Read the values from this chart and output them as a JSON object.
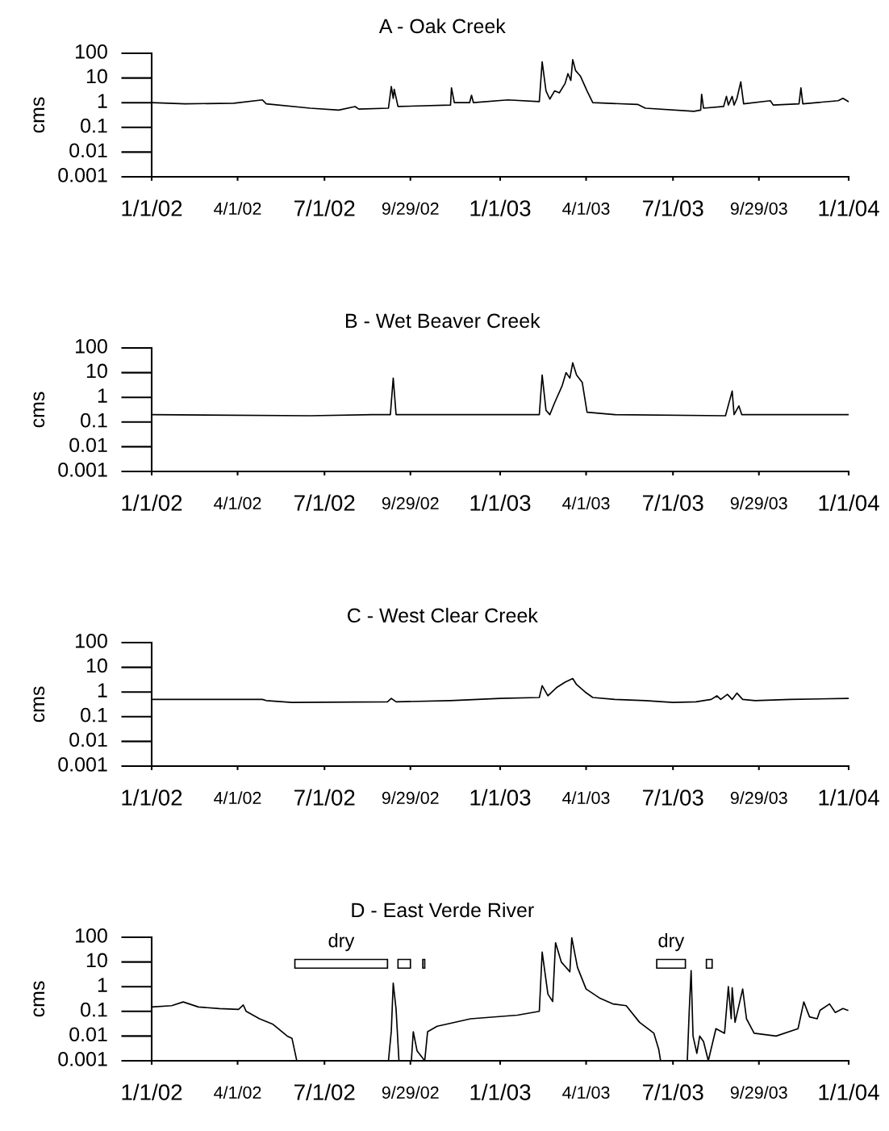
{
  "chart_data": [
    {
      "type": "line",
      "title": "A - Oak Creek",
      "ylabel": "cms",
      "log": "y",
      "xlim": [
        "2002-01-01",
        "2004-01-01"
      ],
      "ylim": [
        0.001,
        100
      ],
      "xticks": [
        {
          "value": "2002-01-01",
          "label": "1/1/02"
        },
        {
          "value": "2002-04-01",
          "label": "4/1/02"
        },
        {
          "value": "2002-07-01",
          "label": "7/1/02"
        },
        {
          "value": "2002-09-29",
          "label": "9/29/02"
        },
        {
          "value": "2003-01-01",
          "label": "1/1/03"
        },
        {
          "value": "2003-04-01",
          "label": "4/1/03"
        },
        {
          "value": "2003-07-01",
          "label": "7/1/03"
        },
        {
          "value": "2003-09-29",
          "label": "9/29/03"
        },
        {
          "value": "2004-01-01",
          "label": "1/1/04"
        }
      ],
      "yticks": [
        0.001,
        0.01,
        0.1,
        1,
        10,
        100
      ],
      "series": [
        {
          "color": "#000000",
          "x": [
            "2002-01-01",
            "2002-02-05",
            "2002-03-28",
            "2002-04-27",
            "2002-05-01",
            "2002-06-16",
            "2002-07-16",
            "2002-08-02",
            "2002-08-06",
            "2002-09-06",
            "2002-09-09",
            "2002-09-11",
            "2002-09-12",
            "2002-09-16",
            "2002-11-10",
            "2002-11-11",
            "2002-11-14",
            "2002-11-30",
            "2002-12-02",
            "2002-12-04",
            "2003-01-09",
            "2003-02-11",
            "2003-02-14",
            "2003-02-18",
            "2003-02-22",
            "2003-02-27",
            "2003-03-04",
            "2003-03-10",
            "2003-03-13",
            "2003-03-16",
            "2003-03-18",
            "2003-03-21",
            "2003-03-26",
            "2003-04-02",
            "2003-04-08",
            "2003-05-25",
            "2003-06-02",
            "2003-07-23",
            "2003-07-30",
            "2003-07-31",
            "2003-08-02",
            "2003-08-23",
            "2003-08-26",
            "2003-08-28",
            "2003-09-01",
            "2003-09-03",
            "2003-09-06",
            "2003-09-10",
            "2003-09-13",
            "2003-10-11",
            "2003-10-14",
            "2003-11-10",
            "2003-11-12",
            "2003-11-14",
            "2003-12-21",
            "2003-12-26",
            "2004-01-01"
          ],
          "values": [
            1.0,
            0.9,
            0.95,
            1.3,
            0.9,
            0.6,
            0.5,
            0.7,
            0.55,
            0.6,
            4.5,
            1.5,
            3.5,
            0.7,
            0.8,
            4,
            1.0,
            1.0,
            2,
            1.0,
            1.3,
            1.1,
            45,
            3,
            1.4,
            3,
            2.5,
            6,
            15,
            8,
            55,
            20,
            12,
            3,
            1.0,
            0.85,
            0.6,
            0.45,
            0.5,
            2.2,
            0.6,
            0.7,
            1.8,
            0.8,
            1.8,
            0.8,
            1.5,
            7,
            0.9,
            1.2,
            0.8,
            0.9,
            4,
            0.9,
            1.2,
            1.5,
            1.1
          ]
        }
      ]
    },
    {
      "type": "line",
      "title": "B - Wet Beaver Creek",
      "ylabel": "cms",
      "log": "y",
      "xlim": [
        "2002-01-01",
        "2004-01-01"
      ],
      "ylim": [
        0.001,
        100
      ],
      "xticks": [
        {
          "value": "2002-01-01",
          "label": "1/1/02"
        },
        {
          "value": "2002-04-01",
          "label": "4/1/02"
        },
        {
          "value": "2002-07-01",
          "label": "7/1/02"
        },
        {
          "value": "2002-09-29",
          "label": "9/29/02"
        },
        {
          "value": "2003-01-01",
          "label": "1/1/03"
        },
        {
          "value": "2003-04-01",
          "label": "4/1/03"
        },
        {
          "value": "2003-07-01",
          "label": "7/1/03"
        },
        {
          "value": "2003-09-29",
          "label": "9/29/03"
        },
        {
          "value": "2004-01-01",
          "label": "1/1/04"
        }
      ],
      "yticks": [
        0.001,
        0.01,
        0.1,
        1,
        10,
        100
      ],
      "series": [
        {
          "color": "#000000",
          "x": [
            "2002-01-01",
            "2002-06-16",
            "2002-08-20",
            "2002-09-08",
            "2002-09-11",
            "2002-09-14",
            "2002-12-31",
            "2003-02-11",
            "2003-02-14",
            "2003-02-18",
            "2003-02-22",
            "2003-02-27",
            "2003-03-07",
            "2003-03-11",
            "2003-03-15",
            "2003-03-18",
            "2003-03-22",
            "2003-03-28",
            "2003-04-02",
            "2003-05-01",
            "2003-08-25",
            "2003-09-01",
            "2003-09-03",
            "2003-09-08",
            "2003-09-11",
            "2004-01-01"
          ],
          "values": [
            0.2,
            0.18,
            0.2,
            0.2,
            6,
            0.2,
            0.2,
            0.2,
            8,
            0.3,
            0.2,
            0.6,
            3,
            10,
            6,
            25,
            8,
            4,
            0.25,
            0.2,
            0.18,
            1.8,
            0.2,
            0.45,
            0.2,
            0.2
          ]
        }
      ]
    },
    {
      "type": "line",
      "title": "C - West Clear Creek",
      "ylabel": "cms",
      "log": "y",
      "xlim": [
        "2002-01-01",
        "2004-01-01"
      ],
      "ylim": [
        0.001,
        100
      ],
      "xticks": [
        {
          "value": "2002-01-01",
          "label": "1/1/02"
        },
        {
          "value": "2002-04-01",
          "label": "4/1/02"
        },
        {
          "value": "2002-07-01",
          "label": "7/1/02"
        },
        {
          "value": "2002-09-29",
          "label": "9/29/02"
        },
        {
          "value": "2003-01-01",
          "label": "1/1/03"
        },
        {
          "value": "2003-04-01",
          "label": "4/1/03"
        },
        {
          "value": "2003-07-01",
          "label": "7/1/03"
        },
        {
          "value": "2003-09-29",
          "label": "9/29/03"
        },
        {
          "value": "2004-01-01",
          "label": "1/1/04"
        }
      ],
      "yticks": [
        0.001,
        0.01,
        0.1,
        1,
        10,
        100
      ],
      "series": [
        {
          "color": "#000000",
          "x": [
            "2002-01-01",
            "2002-04-27",
            "2002-05-01",
            "2002-05-28",
            "2002-09-05",
            "2002-09-09",
            "2002-09-14",
            "2002-11-10",
            "2003-01-01",
            "2003-02-11",
            "2003-02-14",
            "2003-02-20",
            "2003-03-01",
            "2003-03-10",
            "2003-03-18",
            "2003-03-22",
            "2003-03-31",
            "2003-04-08",
            "2003-05-01",
            "2003-06-02",
            "2003-07-01",
            "2003-07-25",
            "2003-08-10",
            "2003-08-16",
            "2003-08-20",
            "2003-08-27",
            "2003-09-01",
            "2003-09-06",
            "2003-09-12",
            "2003-09-25",
            "2003-11-01",
            "2004-01-01"
          ],
          "values": [
            0.5,
            0.5,
            0.45,
            0.38,
            0.4,
            0.55,
            0.4,
            0.45,
            0.55,
            0.6,
            1.8,
            0.7,
            1.5,
            2.5,
            3.5,
            2,
            1.0,
            0.6,
            0.5,
            0.45,
            0.38,
            0.4,
            0.5,
            0.7,
            0.5,
            0.8,
            0.5,
            0.9,
            0.5,
            0.45,
            0.5,
            0.55
          ]
        }
      ]
    },
    {
      "type": "line",
      "title": "D - East Verde River",
      "ylabel": "cms",
      "log": "y",
      "xlim": [
        "2002-01-01",
        "2004-01-01"
      ],
      "ylim": [
        0.001,
        100
      ],
      "xticks": [
        {
          "value": "2002-01-01",
          "label": "1/1/02"
        },
        {
          "value": "2002-04-01",
          "label": "4/1/02"
        },
        {
          "value": "2002-07-01",
          "label": "7/1/02"
        },
        {
          "value": "2002-09-29",
          "label": "9/29/02"
        },
        {
          "value": "2003-01-01",
          "label": "1/1/03"
        },
        {
          "value": "2003-04-01",
          "label": "4/1/03"
        },
        {
          "value": "2003-07-01",
          "label": "7/1/03"
        },
        {
          "value": "2003-09-29",
          "label": "9/29/03"
        },
        {
          "value": "2004-01-01",
          "label": "1/1/04"
        }
      ],
      "yticks": [
        0.001,
        0.01,
        0.1,
        1,
        10,
        100
      ],
      "bands": [
        {
          "axis": "x",
          "from": "2002-05-31",
          "to": "2002-09-05",
          "label": "dry"
        },
        {
          "axis": "x",
          "from": "2002-09-16",
          "to": "2002-09-29",
          "label": null
        },
        {
          "axis": "x",
          "from": "2002-10-12",
          "to": "2002-10-14",
          "label": null
        },
        {
          "axis": "x",
          "from": "2003-06-14",
          "to": "2003-07-14",
          "label": "dry"
        },
        {
          "axis": "x",
          "from": "2003-08-05",
          "to": "2003-08-11",
          "label": null
        }
      ],
      "series": [
        {
          "color": "#000000",
          "x": [
            "2002-01-01",
            "2002-01-22",
            "2002-02-03",
            "2002-02-19",
            "2002-03-13",
            "2002-04-02",
            "2002-04-07",
            "2002-04-10",
            "2002-04-24",
            "2002-05-08",
            "2002-05-23",
            "2002-05-28",
            "2002-06-02",
            "2002-09-06",
            "2002-09-09",
            "2002-09-11",
            "2002-09-14",
            "2002-09-17",
            "2002-09-30",
            "2002-10-02",
            "2002-10-06",
            "2002-10-14",
            "2002-10-17",
            "2002-10-27",
            "2002-12-01",
            "2003-01-19",
            "2003-02-11",
            "2003-02-14",
            "2003-02-20",
            "2003-02-25",
            "2003-02-28",
            "2003-03-06",
            "2003-03-15",
            "2003-03-17",
            "2003-03-23",
            "2003-04-01",
            "2003-04-15",
            "2003-04-29",
            "2003-05-13",
            "2003-05-27",
            "2003-06-11",
            "2003-06-16",
            "2003-06-18",
            "2003-07-16",
            "2003-07-18",
            "2003-07-20",
            "2003-07-22",
            "2003-07-26",
            "2003-07-29",
            "2003-08-02",
            "2003-08-07",
            "2003-08-15",
            "2003-08-24",
            "2003-08-28",
            "2003-08-31",
            "2003-09-01",
            "2003-09-04",
            "2003-09-12",
            "2003-09-16",
            "2003-09-24",
            "2003-10-17",
            "2003-11-09",
            "2003-11-15",
            "2003-11-21",
            "2003-11-29",
            "2003-12-02",
            "2003-12-12",
            "2003-12-18",
            "2003-12-26",
            "2003-12-31"
          ],
          "values": [
            0.15,
            0.17,
            0.24,
            0.15,
            0.13,
            0.12,
            0.18,
            0.1,
            0.05,
            0.03,
            0.01,
            0.008,
            0.001,
            0.001,
            0.016,
            1.4,
            0.12,
            0.001,
            0.001,
            0.015,
            0.0025,
            0.001,
            0.015,
            0.025,
            0.05,
            0.07,
            0.1,
            25,
            0.5,
            0.25,
            60,
            10,
            4,
            95,
            6,
            0.8,
            0.35,
            0.2,
            0.17,
            0.036,
            0.013,
            0.003,
            0.001,
            0.001,
            0.1,
            4.5,
            0.01,
            0.002,
            0.01,
            0.006,
            0.001,
            0.02,
            0.013,
            1,
            0.05,
            0.9,
            0.036,
            0.8,
            0.05,
            0.013,
            0.01,
            0.02,
            0.24,
            0.06,
            0.05,
            0.11,
            0.2,
            0.09,
            0.13,
            0.11
          ]
        }
      ]
    }
  ]
}
